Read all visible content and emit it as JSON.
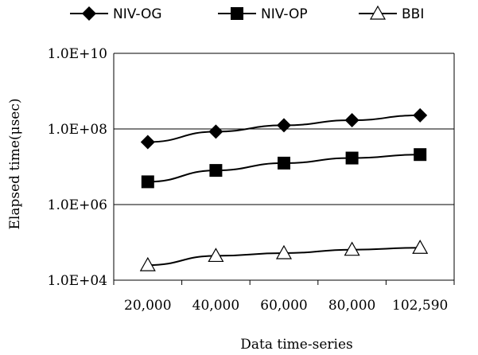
{
  "chart_data": {
    "type": "line",
    "title": "",
    "xlabel": "Data time-series",
    "ylabel": "Elapsed time(μsec)",
    "y_scale": "log",
    "ylim": [
      10000,
      10000000000
    ],
    "y_ticks": [
      10000,
      1000000,
      100000000,
      10000000000
    ],
    "y_tick_labels": [
      "1.0E+04",
      "1.0E+06",
      "1.0E+08",
      "1.0E+10"
    ],
    "categories": [
      "20,000",
      "40,000",
      "60,000",
      "80,000",
      "102,590"
    ],
    "grid": "horizontal",
    "legend_position": "top",
    "series": [
      {
        "name": "NIV-OG",
        "marker": "filled-diamond",
        "values": [
          45000000,
          85000000,
          125000000,
          170000000,
          230000000
        ]
      },
      {
        "name": "NIV-OP",
        "marker": "filled-square",
        "values": [
          4000000,
          8000000,
          12500000,
          17000000,
          21000000
        ]
      },
      {
        "name": "BBI",
        "marker": "hollow-triangle",
        "values": [
          25000,
          44000,
          52000,
          64000,
          72000
        ]
      }
    ]
  }
}
